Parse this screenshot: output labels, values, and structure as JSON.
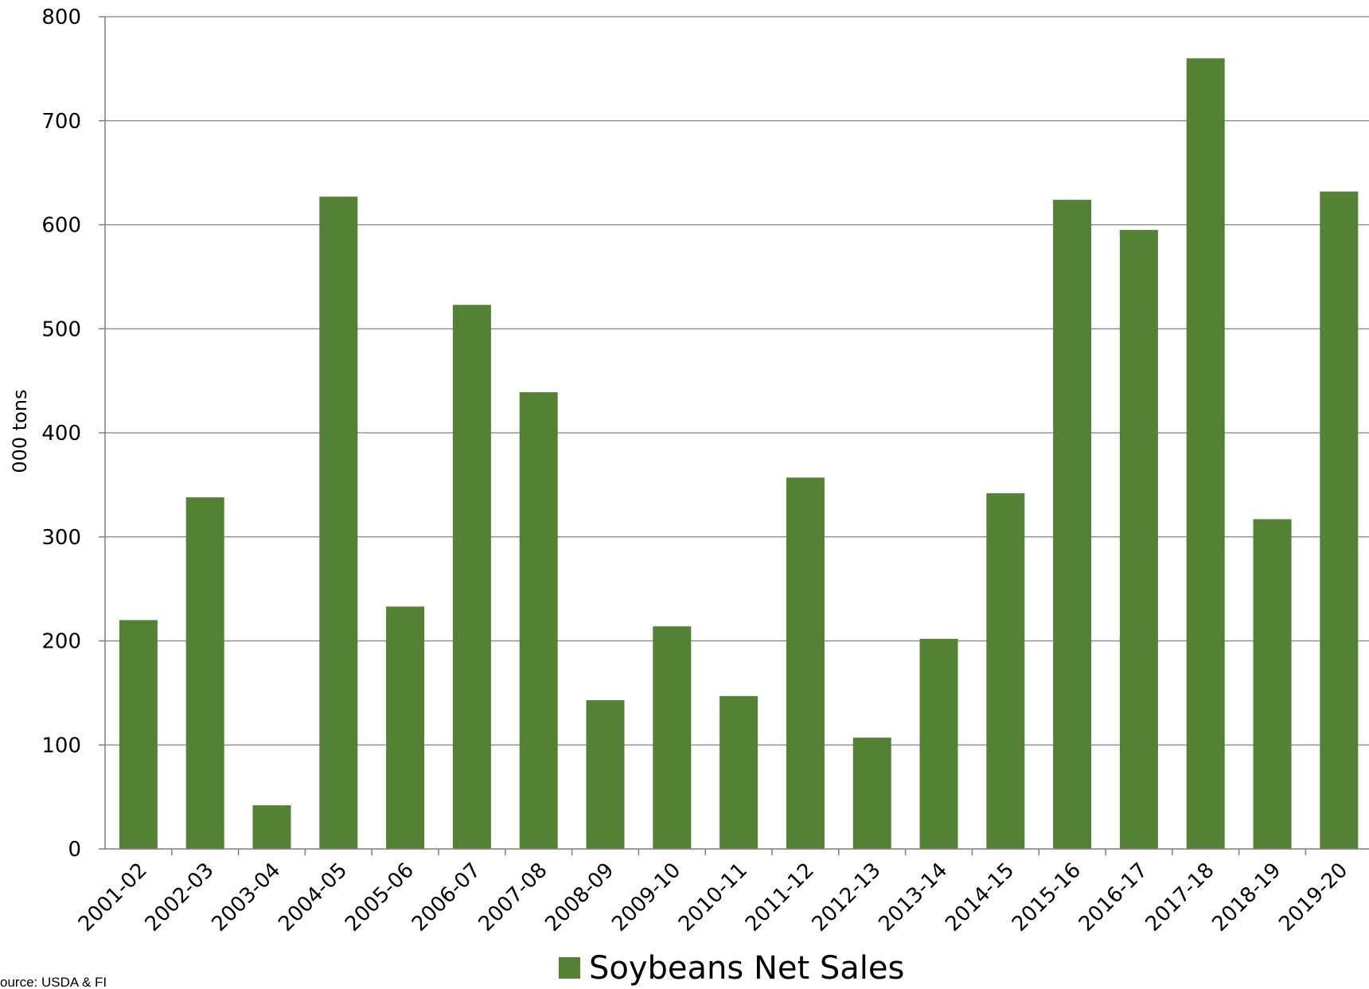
{
  "chart_data": {
    "type": "bar",
    "title": "",
    "xlabel": "",
    "ylabel": "000 tons",
    "ylim": [
      0,
      800
    ],
    "yticks": [
      0,
      100,
      200,
      300,
      400,
      500,
      600,
      700,
      800
    ],
    "grid": true,
    "legend_position": "bottom",
    "categories": [
      "2001-02",
      "2002-03",
      "2003-04",
      "2004-05",
      "2005-06",
      "2006-07",
      "2007-08",
      "2008-09",
      "2009-10",
      "2010-11",
      "2011-12",
      "2012-13",
      "2013-14",
      "2014-15",
      "2015-16",
      "2016-17",
      "2017-18",
      "2018-19",
      "2019-20"
    ],
    "series": [
      {
        "name": "Soybeans Net Sales",
        "color": "#548235",
        "values": [
          220,
          338,
          42,
          627,
          233,
          523,
          439,
          143,
          214,
          147,
          357,
          107,
          202,
          342,
          624,
          595,
          760,
          317,
          632
        ]
      }
    ],
    "source": "ource: USDA & FI"
  }
}
